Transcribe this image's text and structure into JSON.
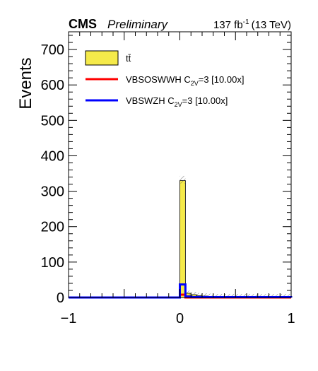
{
  "header": {
    "experiment": "CMS",
    "status": "Preliminary",
    "lumi_value": "137 fb",
    "lumi_exp": "-1",
    "energy": "(13 TeV)"
  },
  "chart_data": {
    "type": "bar",
    "ylabel": "Events",
    "xlabel": "",
    "xlim": [
      -1,
      1
    ],
    "ylim": [
      0,
      750
    ],
    "x_ticks": [
      -1,
      0,
      1
    ],
    "y_ticks": [
      0,
      100,
      200,
      300,
      400,
      500,
      600,
      700
    ],
    "bin_edges": [
      -1.0,
      0.0,
      0.05,
      0.1,
      0.15,
      0.2,
      0.25,
      0.3,
      1.0
    ],
    "series": [
      {
        "name": "tt̄",
        "kind": "stacked-fill",
        "color": "#f5ea4a",
        "values": [
          0,
          330,
          12,
          8,
          5,
          4,
          3,
          2
        ]
      },
      {
        "name": "VBSOSWWH C2V=3 [10.00x]",
        "kind": "line",
        "color": "#ff0000",
        "values": [
          0,
          8,
          0,
          0,
          0,
          0,
          0,
          0
        ]
      },
      {
        "name": "VBSWZH C2V=3 [10.00x]",
        "kind": "line",
        "color": "#0000ff",
        "values": [
          0,
          37,
          3,
          1,
          1,
          1,
          1,
          1
        ]
      }
    ],
    "legend": {
      "placement": "top-left",
      "entries": [
        {
          "base": "tt̄",
          "sub": "",
          "suffix": ""
        },
        {
          "base": "VBSOSWWH C",
          "sub": "2V",
          "suffix": "=3 [10.00x]"
        },
        {
          "base": "VBSWZH C",
          "sub": "2V",
          "suffix": "=3 [10.00x]"
        }
      ]
    }
  }
}
